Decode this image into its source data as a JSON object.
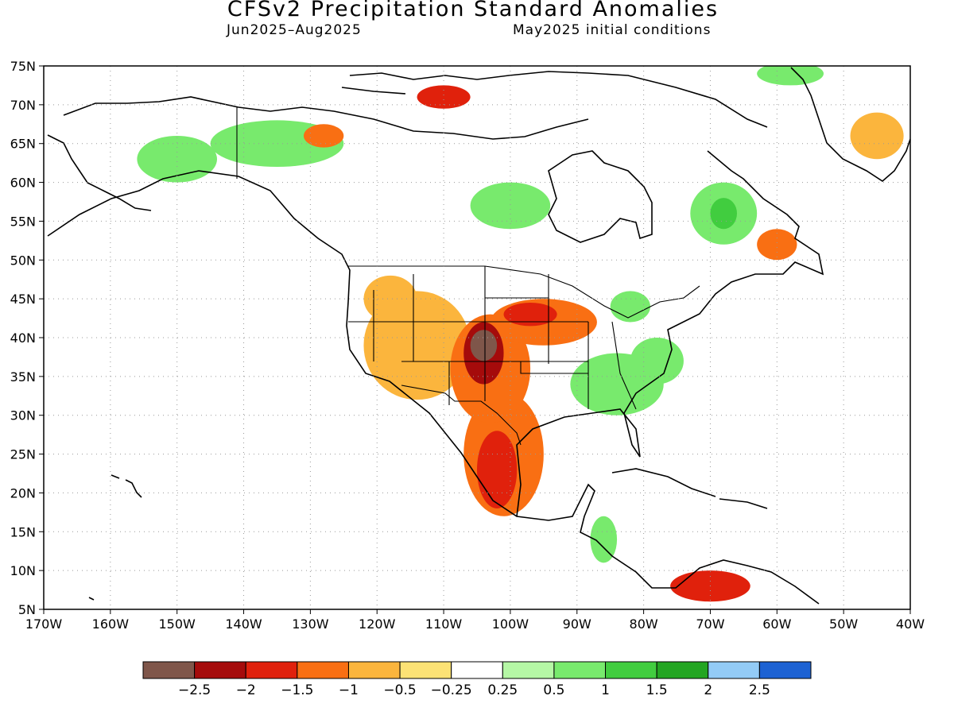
{
  "title": "CFSv2 Precipitation Standard Anomalies",
  "subtitle_left": "Jun2025–Aug2025",
  "subtitle_right": "May2025 initial conditions",
  "map": {
    "lon_range": [
      -170,
      -40
    ],
    "lat_range": [
      5,
      75
    ],
    "lat_ticks": [
      "75N",
      "70N",
      "65N",
      "60N",
      "55N",
      "50N",
      "45N",
      "40N",
      "35N",
      "30N",
      "25N",
      "20N",
      "15N",
      "10N",
      "5N"
    ],
    "lon_ticks": [
      "170W",
      "160W",
      "150W",
      "140W",
      "130W",
      "120W",
      "110W",
      "100W",
      "90W",
      "80W",
      "70W",
      "60W",
      "50W",
      "40W"
    ],
    "grid": true
  },
  "colorbar": {
    "colors": [
      "#7f564a",
      "#a50b0b",
      "#e0210c",
      "#f96f13",
      "#fbb53d",
      "#fce275",
      "#ffffff",
      "#b5f7a5",
      "#78ea6d",
      "#41cd3f",
      "#23a522",
      "#93cbf6",
      "#1d62d3"
    ],
    "labels": [
      "−2.5",
      "−2",
      "−1.5",
      "−1",
      "−0.5",
      "−0.25",
      "0.25",
      "0.5",
      "1",
      "1.5",
      "2",
      "2.5"
    ]
  },
  "anomaly_regions": [
    {
      "lon": -104,
      "lat": 39,
      "rx": 2,
      "ry": 2,
      "level": -2.5
    },
    {
      "lon": -104,
      "lat": 38,
      "rx": 3,
      "ry": 4,
      "level": -2
    },
    {
      "lon": -103,
      "lat": 36,
      "rx": 6,
      "ry": 7,
      "level": -1
    },
    {
      "lon": -101,
      "lat": 25,
      "rx": 6,
      "ry": 8,
      "level": -1
    },
    {
      "lon": -102,
      "lat": 23,
      "rx": 3,
      "ry": 5,
      "level": -1.5
    },
    {
      "lon": -95,
      "lat": 42,
      "rx": 8,
      "ry": 3,
      "level": -1
    },
    {
      "lon": -97,
      "lat": 43,
      "rx": 4,
      "ry": 1.5,
      "level": -1.5
    },
    {
      "lon": -114,
      "lat": 39,
      "rx": 8,
      "ry": 7,
      "level": -0.5
    },
    {
      "lon": -118,
      "lat": 45,
      "rx": 4,
      "ry": 3,
      "level": -0.5
    },
    {
      "lon": -84,
      "lat": 34,
      "rx": 7,
      "ry": 4,
      "level": 0.5
    },
    {
      "lon": -78,
      "lat": 37,
      "rx": 4,
      "ry": 3,
      "level": 0.5
    },
    {
      "lon": -82,
      "lat": 44,
      "rx": 3,
      "ry": 2,
      "level": 0.5
    },
    {
      "lon": -68,
      "lat": 56,
      "rx": 5,
      "ry": 4,
      "level": 0.5
    },
    {
      "lon": -68,
      "lat": 56,
      "rx": 2,
      "ry": 2,
      "level": 1
    },
    {
      "lon": -60,
      "lat": 52,
      "rx": 3,
      "ry": 2,
      "level": -1
    },
    {
      "lon": -135,
      "lat": 65,
      "rx": 10,
      "ry": 3,
      "level": 0.5
    },
    {
      "lon": -150,
      "lat": 63,
      "rx": 6,
      "ry": 3,
      "level": 0.5
    },
    {
      "lon": -110,
      "lat": 71,
      "rx": 4,
      "ry": 1.5,
      "level": -1.5
    },
    {
      "lon": -128,
      "lat": 66,
      "rx": 3,
      "ry": 1.5,
      "level": -1
    },
    {
      "lon": -100,
      "lat": 57,
      "rx": 6,
      "ry": 3,
      "level": 0.5
    },
    {
      "lon": -70,
      "lat": 8,
      "rx": 6,
      "ry": 2,
      "level": -1.5
    },
    {
      "lon": -45,
      "lat": 66,
      "rx": 4,
      "ry": 3,
      "level": -0.5
    },
    {
      "lon": -58,
      "lat": 74,
      "rx": 5,
      "ry": 1.5,
      "level": 0.5
    },
    {
      "lon": -86,
      "lat": 14,
      "rx": 2,
      "ry": 3,
      "level": 0.5
    }
  ]
}
